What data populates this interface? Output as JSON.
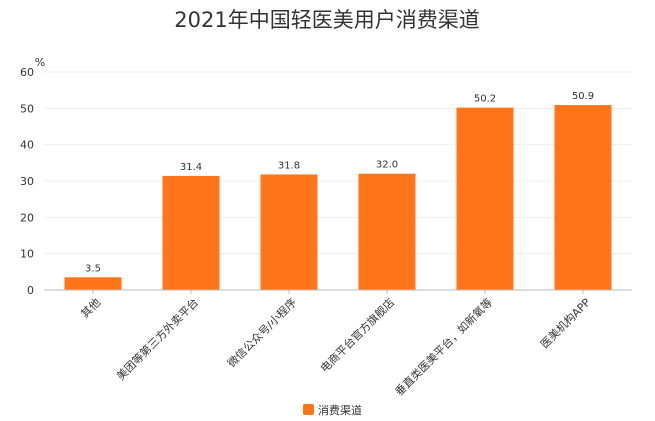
{
  "chart_data": {
    "type": "bar",
    "title": "2021年中国轻医美用户消费渠道",
    "ylabel": "%",
    "xlabel": "",
    "categories": [
      "其他",
      "美团等第三方外卖平台",
      "微信公众号/小程序",
      "电商平台官方旗舰店",
      "垂直类医美平台，如新氧等",
      "医美机构APP"
    ],
    "series": [
      {
        "name": "消费渠道",
        "values": [
          3.5,
          31.4,
          31.8,
          32.0,
          50.2,
          50.9
        ]
      }
    ],
    "ylim": [
      0,
      60
    ],
    "yticks": [
      0,
      10,
      20,
      30,
      40,
      50,
      60
    ],
    "grid": true,
    "legend": "bottom-center",
    "colors": {
      "bar": "#FF7518",
      "grid": "#EEEEEE",
      "axis": "#BBBBBB"
    }
  }
}
